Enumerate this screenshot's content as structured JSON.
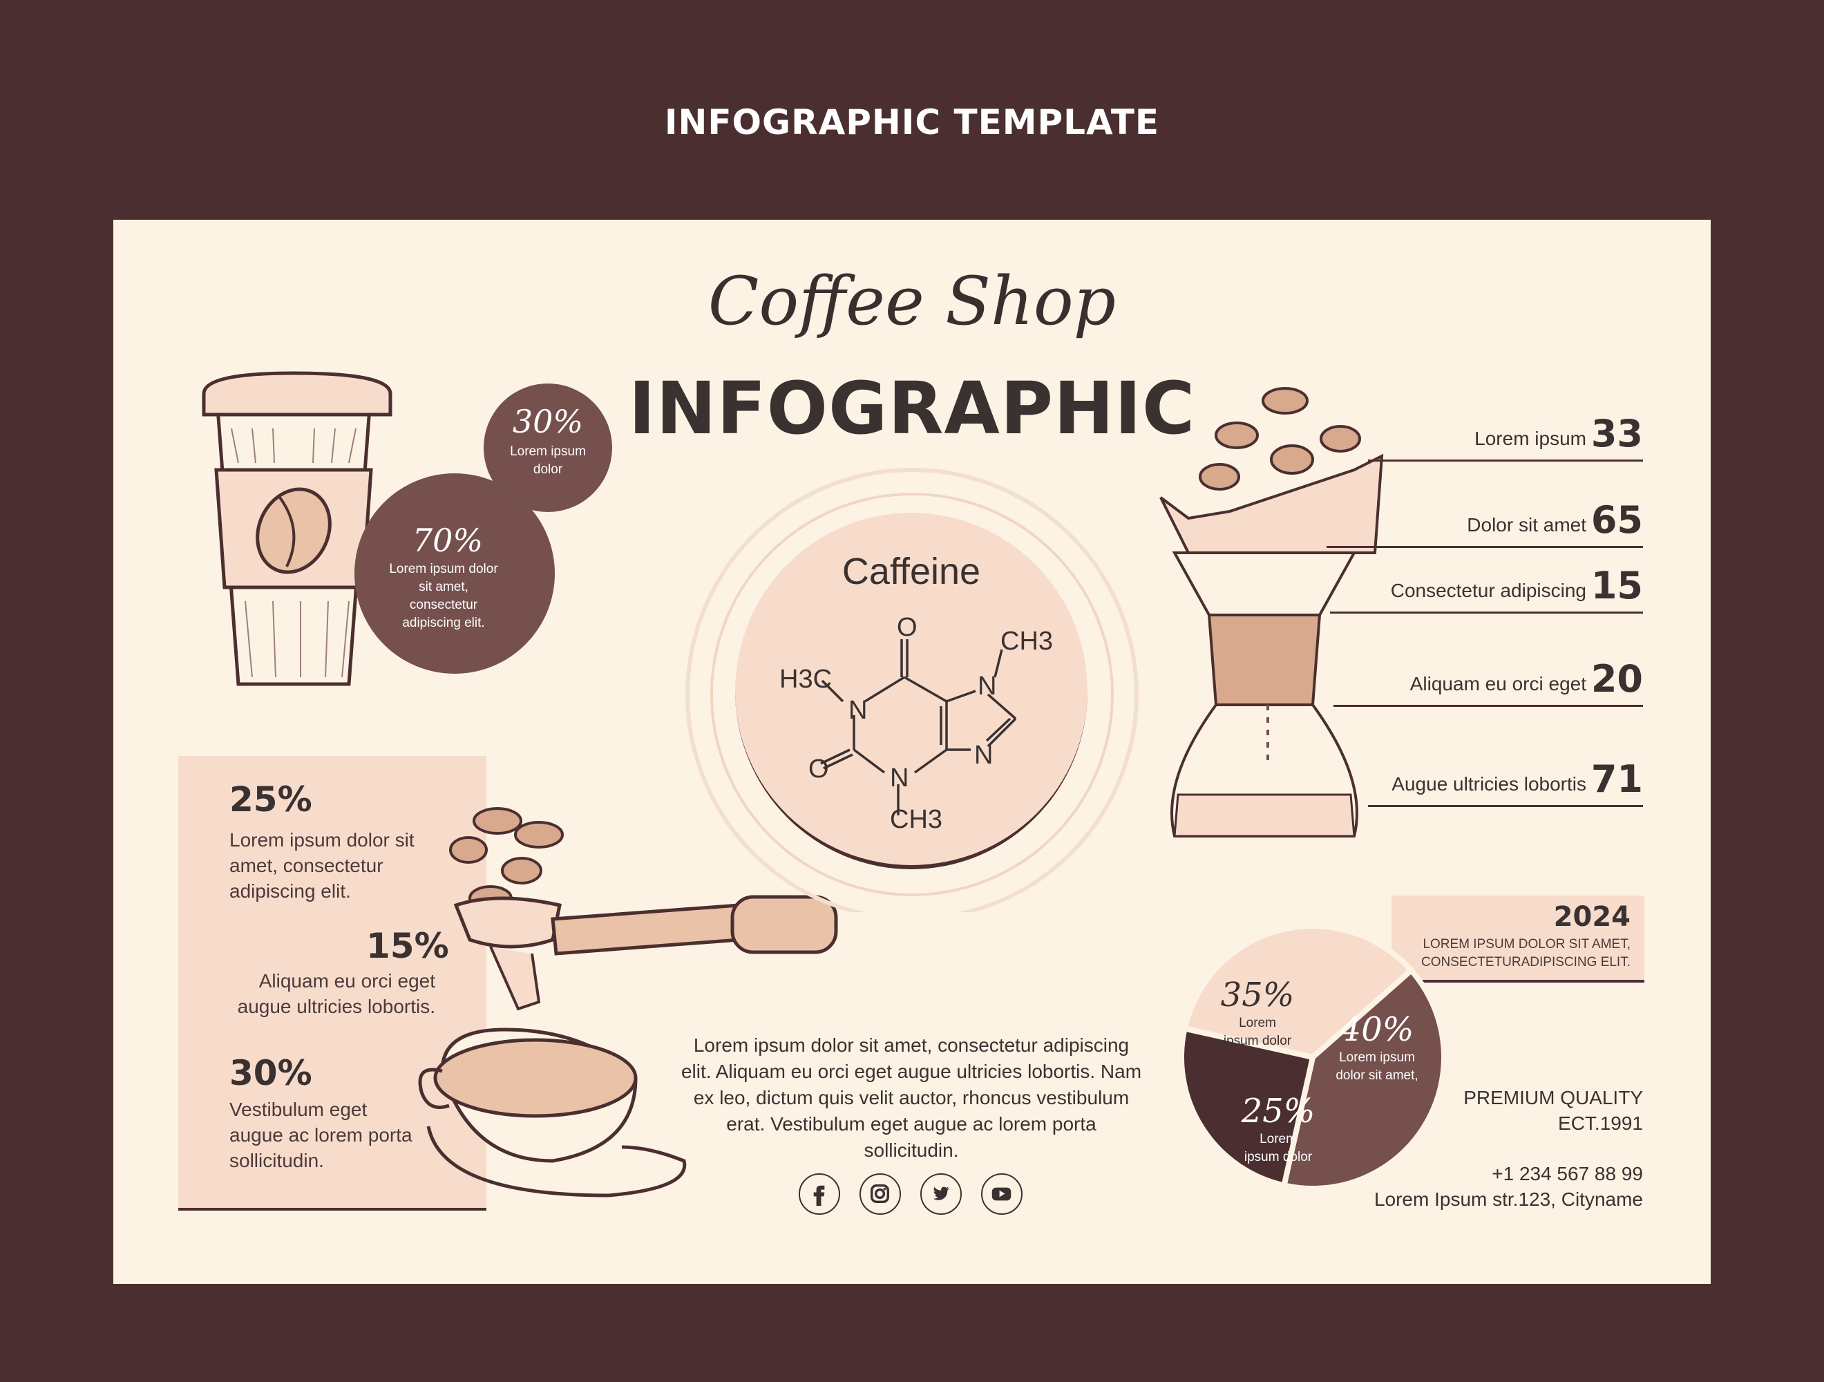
{
  "header": {
    "title": "INFOGRAPHIC TEMPLATE"
  },
  "hero": {
    "script_title": "Coffee Shop",
    "main_title": "INFOGRAPHIC"
  },
  "cup_stats": [
    {
      "value": "30%",
      "text": "Lorem ipsum dolor"
    },
    {
      "value": "70%",
      "text": "Lorem ipsum dolor sit amet, consectetur adipiscing elit."
    }
  ],
  "left_stats": [
    {
      "value": "25%",
      "text": "Lorem ipsum dolor sit amet, consectetur adipiscing elit."
    },
    {
      "value": "15%",
      "text": "Aliquam eu orci eget augue ultricies lobortis."
    },
    {
      "value": "30%",
      "text": "Vestibulum eget augue ac lorem porta sollicitudin."
    }
  ],
  "molecule": {
    "title": "Caffeine",
    "atoms": [
      "O",
      "N",
      "CH3",
      "H3C",
      "N",
      "O",
      "N",
      "N",
      "CH3"
    ]
  },
  "list": [
    {
      "label": "Lorem ipsum",
      "value": "33"
    },
    {
      "label": "Dolor sit amet",
      "value": "65"
    },
    {
      "label": "Consectetur adipiscing",
      "value": "15"
    },
    {
      "label": "Aliquam eu orci eget",
      "value": "20"
    },
    {
      "label": "Augue ultricies lobortis",
      "value": "71"
    }
  ],
  "year_box": {
    "year": "2024",
    "text": "LOREM IPSUM DOLOR SIT AMET, CONSECTETURADIPISCING ELIT."
  },
  "pie": [
    {
      "value": "35%",
      "text": "Lorem ipsum dolor",
      "percent": 35,
      "color": "#f8dccb"
    },
    {
      "value": "40%",
      "text": "Lorem ipsum dolor sit amet,",
      "percent": 40,
      "color": "#75504c"
    },
    {
      "value": "25%",
      "text": "Lorem ipsum dolor",
      "percent": 25,
      "color": "#4b2f30"
    }
  ],
  "body_text": "Lorem ipsum dolor sit amet, consectetur adipiscing elit. Aliquam eu orci eget augue ultricies lobortis. Nam ex leo, dictum quis velit auctor, rhoncus vestibulum erat. Vestibulum eget augue ac lorem porta sollicitudin.",
  "social": [
    "facebook-icon",
    "instagram-icon",
    "twitter-icon",
    "youtube-icon"
  ],
  "contact": {
    "quality": "PREMIUM QUALITY",
    "est": "ECT.1991",
    "phone": "+1 234 567 88 99",
    "address": "Lorem Ipsum str.123, Cityname"
  },
  "colors": {
    "dark": "#4b2f30",
    "medium": "#75504c",
    "light": "#f8dccb",
    "paper": "#fdf3e4"
  }
}
